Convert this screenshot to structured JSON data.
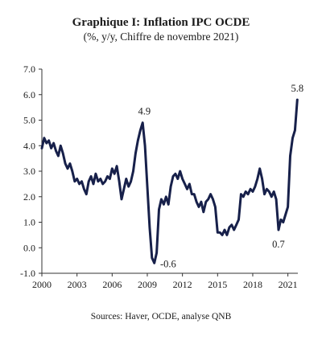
{
  "chart_data": {
    "type": "line",
    "title": "Graphique I: Inflation IPC OCDE",
    "subtitle": "(%, y/y, Chiffre de novembre 2021)",
    "source": "Sources: Haver, OCDE, analyse QNB",
    "xlim": [
      2000,
      2021.85
    ],
    "ylim": [
      -1.0,
      7.0
    ],
    "yticks": [
      "7.0",
      "6.0",
      "5.0",
      "4.0",
      "3.0",
      "2.0",
      "1.0",
      "0.0",
      "-1.0"
    ],
    "xticks": [
      "2000",
      "2003",
      "2006",
      "2009",
      "2012",
      "2015",
      "2018",
      "2021"
    ],
    "grid": false,
    "line_color": "#17204a",
    "series": [
      {
        "x": [
          2000.0,
          2000.2,
          2000.4,
          2000.6,
          2000.8,
          2001.0,
          2001.2,
          2001.4,
          2001.6,
          2001.8,
          2002.0,
          2002.2,
          2002.4,
          2002.6,
          2002.8,
          2003.0,
          2003.2,
          2003.4,
          2003.6,
          2003.8,
          2004.0,
          2004.2,
          2004.4,
          2004.6,
          2004.8,
          2005.0,
          2005.2,
          2005.4,
          2005.6,
          2005.8,
          2006.0,
          2006.2,
          2006.4,
          2006.6,
          2006.8,
          2007.0,
          2007.2,
          2007.4,
          2007.6,
          2007.8,
          2008.0,
          2008.2,
          2008.4,
          2008.6,
          2008.8,
          2009.0,
          2009.2,
          2009.4,
          2009.6,
          2009.8,
          2010.0,
          2010.2,
          2010.4,
          2010.6,
          2010.8,
          2011.0,
          2011.2,
          2011.4,
          2011.6,
          2011.8,
          2012.0,
          2012.2,
          2012.4,
          2012.6,
          2012.8,
          2013.0,
          2013.2,
          2013.4,
          2013.6,
          2013.8,
          2014.0,
          2014.2,
          2014.4,
          2014.6,
          2014.8,
          2015.0,
          2015.2,
          2015.4,
          2015.6,
          2015.8,
          2016.0,
          2016.2,
          2016.4,
          2016.6,
          2016.8,
          2017.0,
          2017.2,
          2017.4,
          2017.6,
          2017.8,
          2018.0,
          2018.2,
          2018.4,
          2018.6,
          2018.8,
          2019.0,
          2019.2,
          2019.4,
          2019.6,
          2019.8,
          2020.0,
          2020.2,
          2020.4,
          2020.6,
          2020.8,
          2021.0,
          2021.2,
          2021.4,
          2021.6,
          2021.8
        ],
        "values": [
          3.9,
          4.3,
          4.1,
          4.2,
          3.9,
          4.1,
          3.8,
          3.6,
          4.0,
          3.7,
          3.3,
          3.1,
          3.3,
          3.0,
          2.6,
          2.7,
          2.5,
          2.6,
          2.3,
          2.1,
          2.6,
          2.8,
          2.5,
          2.9,
          2.6,
          2.7,
          2.5,
          2.6,
          2.8,
          2.7,
          3.1,
          2.9,
          3.2,
          2.6,
          1.9,
          2.3,
          2.7,
          2.4,
          2.6,
          3.0,
          3.7,
          4.2,
          4.6,
          4.9,
          4.0,
          2.4,
          0.8,
          -0.4,
          -0.6,
          -0.2,
          1.5,
          1.9,
          1.7,
          2.0,
          1.7,
          2.4,
          2.8,
          2.9,
          2.7,
          3.0,
          2.7,
          2.5,
          2.3,
          2.5,
          2.1,
          2.1,
          1.8,
          1.6,
          1.8,
          1.4,
          1.8,
          1.9,
          2.1,
          1.9,
          1.6,
          0.6,
          0.6,
          0.5,
          0.7,
          0.5,
          0.8,
          0.9,
          0.7,
          0.9,
          1.1,
          2.1,
          2.0,
          2.2,
          2.1,
          2.3,
          2.2,
          2.4,
          2.7,
          3.1,
          2.7,
          2.1,
          2.3,
          2.2,
          2.0,
          2.2,
          1.9,
          0.7,
          1.1,
          1.0,
          1.3,
          1.6,
          3.6,
          4.3,
          4.6,
          5.8
        ]
      }
    ],
    "annotations": [
      {
        "text": "4.9",
        "x": 2008.75,
        "y": 4.9,
        "pos": "above"
      },
      {
        "text": "-0.6",
        "x": 2009.55,
        "y": -0.6,
        "pos": "right"
      },
      {
        "text": "0.7",
        "x": 2020.2,
        "y": 0.7,
        "pos": "below"
      },
      {
        "text": "5.8",
        "x": 2021.8,
        "y": 5.8,
        "pos": "above"
      }
    ]
  }
}
